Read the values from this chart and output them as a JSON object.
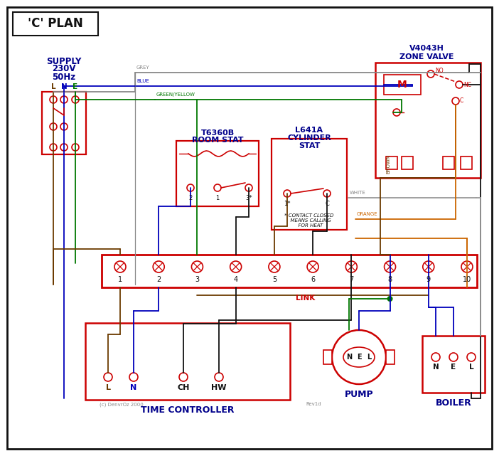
{
  "title": "'C' PLAN",
  "RED": "#cc0000",
  "BLUE": "#0000bb",
  "GREEN": "#007700",
  "GREY": "#888888",
  "BROWN": "#6b3a00",
  "ORANGE": "#cc6600",
  "BLACK": "#111111",
  "DKBLUE": "#00008b",
  "supply_lines": [
    "SUPPLY",
    "230V",
    "50Hz"
  ],
  "supply_lne": [
    "L",
    "N",
    "E"
  ],
  "zv_title": [
    "V4043H",
    "ZONE VALVE"
  ],
  "rs_title": [
    "T6360B",
    "ROOM STAT"
  ],
  "cs_title": [
    "L641A",
    "CYLINDER",
    "STAT"
  ],
  "terminals": [
    "1",
    "2",
    "3",
    "4",
    "5",
    "6",
    "7",
    "8",
    "9",
    "10"
  ],
  "tc_title": "TIME CONTROLLER",
  "tc_labels": [
    "L",
    "N",
    "CH",
    "HW"
  ],
  "pump_title": "PUMP",
  "pump_nel": [
    "N",
    "E",
    "L"
  ],
  "boiler_title": "BOILER",
  "boiler_nel": [
    "N",
    "E",
    "L"
  ],
  "footnote": "* CONTACT CLOSED\n  MEANS CALLING\n  FOR HEAT",
  "copyright": "(c) DenvrOz 2000",
  "revision": "Rev1d",
  "wire_grey": "GREY",
  "wire_blue": "BLUE",
  "wire_gy": "GREEN/YELLOW",
  "wire_brown": "BROWN",
  "wire_white": "WHITE",
  "wire_orange": "ORANGE",
  "wire_link": "LINK"
}
